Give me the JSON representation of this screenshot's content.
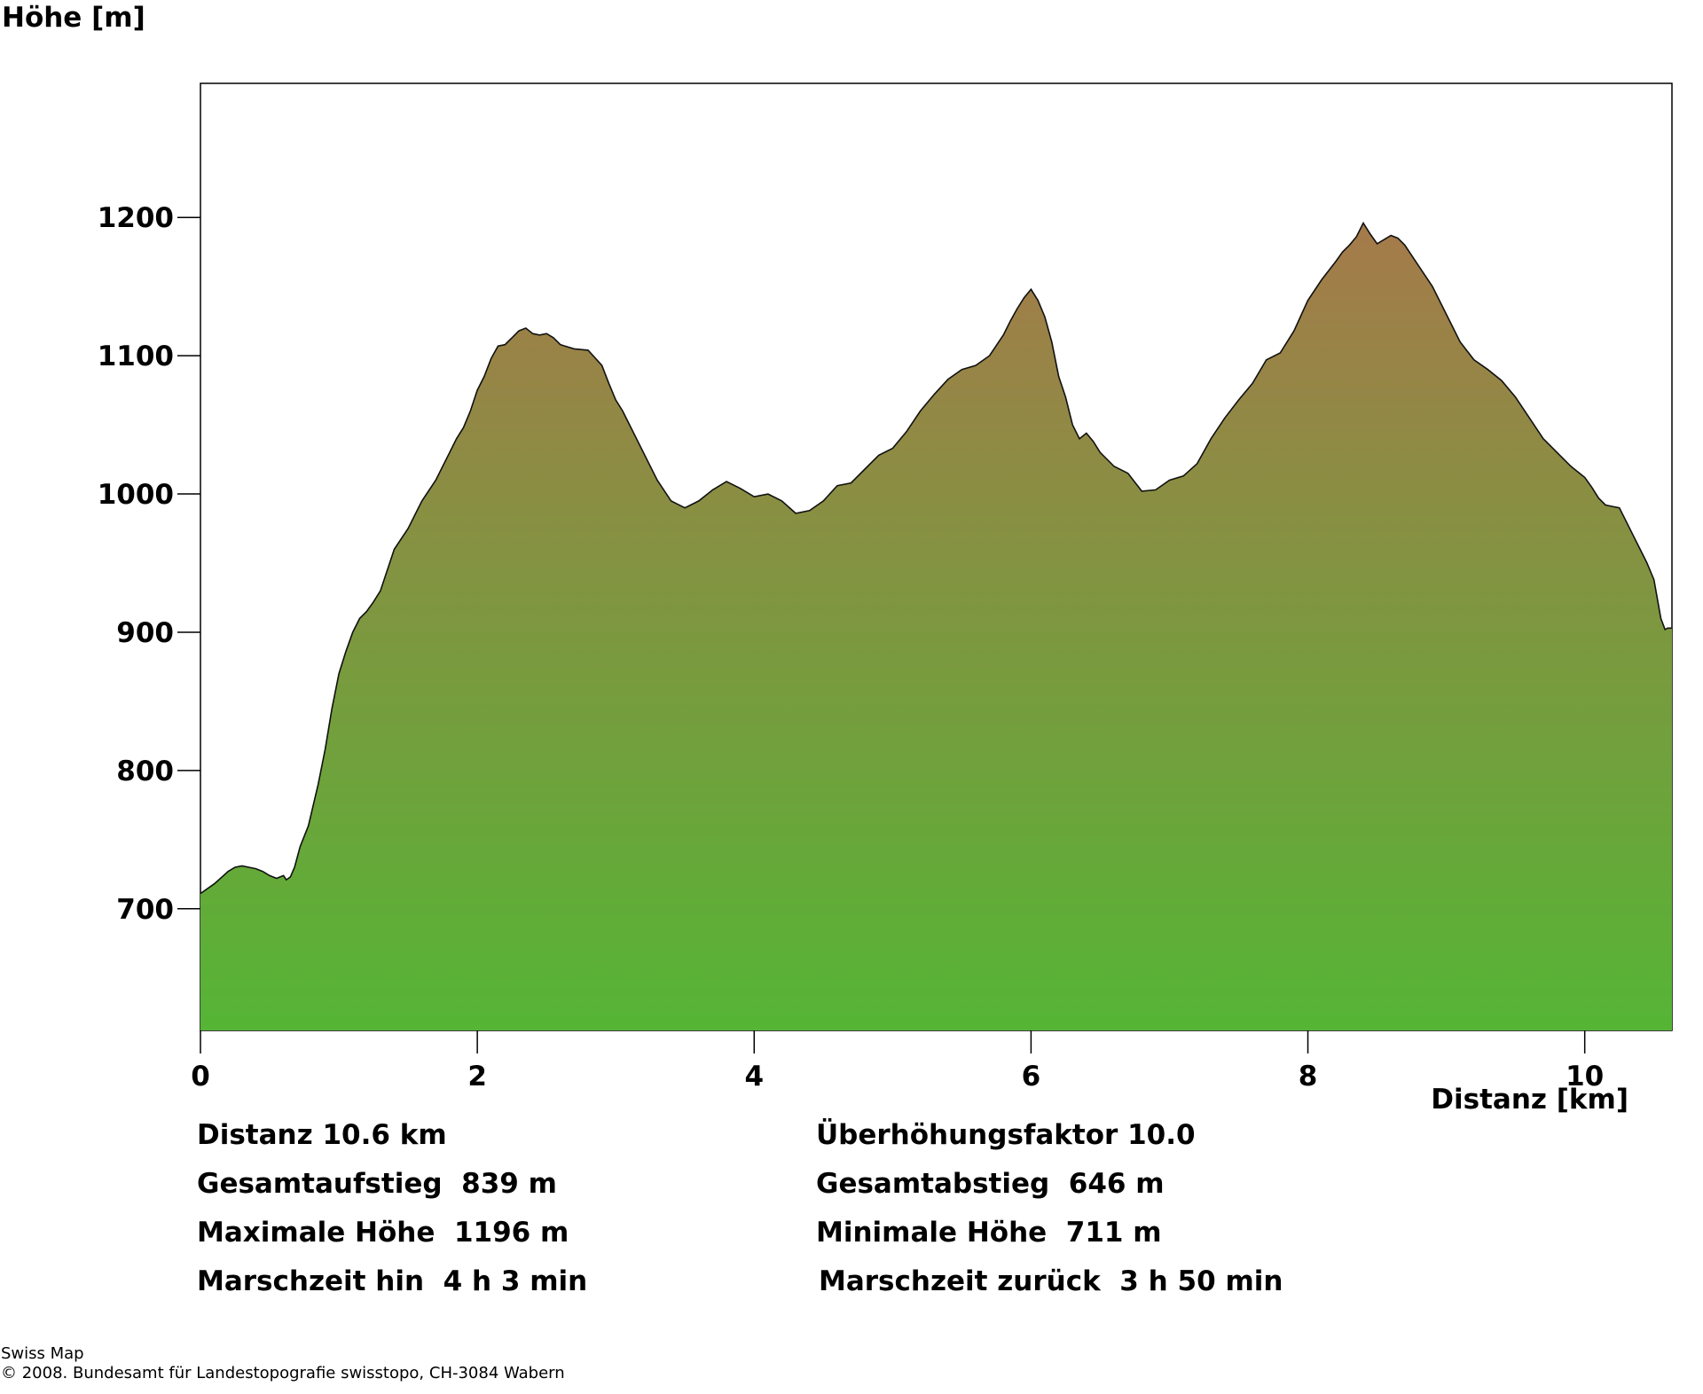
{
  "chart_data": {
    "type": "area",
    "ylabel": "Höhe [m]",
    "xlabel": "Distanz [km]",
    "xlim": [
      0,
      10.63
    ],
    "ylim": [
      612,
      1297
    ],
    "x_ticks": [
      0,
      2,
      4,
      6,
      8,
      10
    ],
    "x_tick_labels": [
      "0",
      "2",
      "4",
      "6",
      "8",
      "10"
    ],
    "y_ticks": [
      700,
      800,
      900,
      1000,
      1100,
      1200
    ],
    "y_tick_labels": [
      "700",
      "800",
      "900",
      "1000",
      "1100",
      "1200"
    ],
    "grid": false,
    "colors": {
      "top": "#a57a4a",
      "bottom": "#55b535",
      "outline": "#111111",
      "frame": "#000000"
    },
    "series": [
      {
        "x": [
          0,
          0.1,
          0.2,
          0.25,
          0.3,
          0.4,
          0.45,
          0.5,
          0.55,
          0.6,
          0.62,
          0.65,
          0.68,
          0.72,
          0.78,
          0.85,
          0.9,
          0.95,
          1.0,
          1.05,
          1.1,
          1.15,
          1.2,
          1.25,
          1.3,
          1.35,
          1.4,
          1.5,
          1.55,
          1.6,
          1.7,
          1.75,
          1.8,
          1.85,
          1.9,
          1.95,
          2.0,
          2.05,
          2.1,
          2.15,
          2.2,
          2.25,
          2.3,
          2.35,
          2.4,
          2.45,
          2.5,
          2.55,
          2.6,
          2.7,
          2.8,
          2.9,
          2.95,
          3.0,
          3.05,
          3.1,
          3.15,
          3.2,
          3.3,
          3.4,
          3.5,
          3.6,
          3.7,
          3.8,
          3.9,
          4.0,
          4.1,
          4.2,
          4.3,
          4.4,
          4.5,
          4.6,
          4.7,
          4.8,
          4.9,
          5.0,
          5.1,
          5.2,
          5.3,
          5.4,
          5.5,
          5.6,
          5.7,
          5.8,
          5.85,
          5.9,
          5.95,
          6.0,
          6.05,
          6.1,
          6.15,
          6.2,
          6.25,
          6.3,
          6.35,
          6.4,
          6.45,
          6.5,
          6.6,
          6.7,
          6.8,
          6.9,
          7.0,
          7.1,
          7.2,
          7.3,
          7.4,
          7.5,
          7.6,
          7.7,
          7.8,
          7.9,
          8.0,
          8.1,
          8.2,
          8.25,
          8.3,
          8.35,
          8.4,
          8.45,
          8.5,
          8.55,
          8.6,
          8.65,
          8.7,
          8.8,
          8.9,
          9.0,
          9.1,
          9.2,
          9.3,
          9.4,
          9.5,
          9.6,
          9.7,
          9.8,
          9.9,
          10.0,
          10.05,
          10.1,
          10.15,
          10.2,
          10.25,
          10.3,
          10.35,
          10.4,
          10.45,
          10.5,
          10.55,
          10.58,
          10.6,
          10.63
        ],
        "y": [
          711,
          718,
          727,
          730,
          731,
          729,
          727,
          724,
          722,
          724,
          721,
          723,
          730,
          745,
          760,
          790,
          815,
          845,
          870,
          886,
          900,
          910,
          915,
          922,
          930,
          945,
          960,
          975,
          985,
          995,
          1010,
          1020,
          1030,
          1040,
          1048,
          1060,
          1075,
          1085,
          1098,
          1107,
          1108,
          1113,
          1118,
          1120,
          1116,
          1115,
          1116,
          1113,
          1108,
          1105,
          1104,
          1093,
          1080,
          1068,
          1060,
          1050,
          1040,
          1030,
          1010,
          995,
          990,
          995,
          1003,
          1009,
          1004,
          998,
          1000,
          995,
          986,
          988,
          995,
          1006,
          1008,
          1018,
          1028,
          1033,
          1045,
          1060,
          1072,
          1083,
          1090,
          1093,
          1100,
          1115,
          1125,
          1134,
          1142,
          1148,
          1140,
          1128,
          1110,
          1085,
          1070,
          1050,
          1040,
          1044,
          1038,
          1030,
          1020,
          1015,
          1002,
          1003,
          1010,
          1013,
          1022,
          1040,
          1055,
          1068,
          1080,
          1097,
          1102,
          1118,
          1140,
          1155,
          1168,
          1175,
          1180,
          1186,
          1196,
          1188,
          1181,
          1184,
          1187,
          1185,
          1180,
          1165,
          1150,
          1130,
          1110,
          1097,
          1090,
          1082,
          1070,
          1055,
          1040,
          1030,
          1020,
          1012,
          1005,
          997,
          992,
          991,
          990,
          980,
          970,
          960,
          950,
          938,
          910,
          902,
          903,
          903
        ]
      }
    ]
  },
  "stats": {
    "distance": "Distanz 10.6 km",
    "exaggeration": "Überhöhungsfaktor 10.0",
    "ascent": "Gesamtaufstieg  839 m",
    "descent": "Gesamtabstieg  646 m",
    "max_height": "Maximale Höhe  1196 m",
    "min_height": "Minimale Höhe  711 m",
    "time_forward": "Marschzeit hin  4 h 3 min",
    "time_back": "Marschzeit zurück  3 h 50 min"
  },
  "footer": {
    "line1": "Swiss Map",
    "line2": "© 2008. Bundesamt für Landestopografie swisstopo, CH-3084 Wabern"
  }
}
